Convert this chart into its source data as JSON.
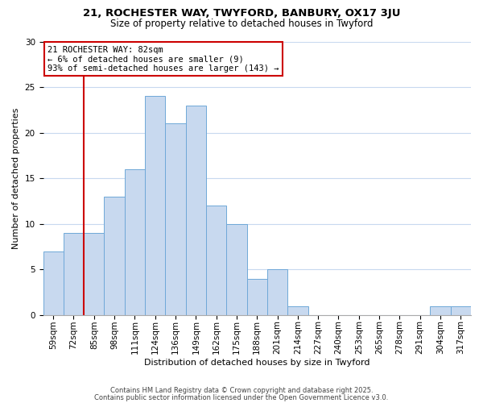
{
  "title_line1": "21, ROCHESTER WAY, TWYFORD, BANBURY, OX17 3JU",
  "title_line2": "Size of property relative to detached houses in Twyford",
  "xlabel": "Distribution of detached houses by size in Twyford",
  "ylabel": "Number of detached properties",
  "bar_labels": [
    "59sqm",
    "72sqm",
    "85sqm",
    "98sqm",
    "111sqm",
    "124sqm",
    "136sqm",
    "149sqm",
    "162sqm",
    "175sqm",
    "188sqm",
    "201sqm",
    "214sqm",
    "227sqm",
    "240sqm",
    "253sqm",
    "265sqm",
    "278sqm",
    "291sqm",
    "304sqm",
    "317sqm"
  ],
  "bar_values": [
    7,
    9,
    9,
    13,
    16,
    24,
    21,
    23,
    12,
    10,
    4,
    5,
    1,
    0,
    0,
    0,
    0,
    0,
    0,
    1,
    1
  ],
  "bar_color": "#c8d9ef",
  "bar_edgecolor": "#6fa8d8",
  "vline_color": "#cc0000",
  "vline_pos": 1.5,
  "annotation_title": "21 ROCHESTER WAY: 82sqm",
  "annotation_line2": "← 6% of detached houses are smaller (9)",
  "annotation_line3": "93% of semi-detached houses are larger (143) →",
  "annotation_box_facecolor": "#ffffff",
  "annotation_box_edgecolor": "#cc0000",
  "ylim": [
    0,
    30
  ],
  "yticks": [
    0,
    5,
    10,
    15,
    20,
    25,
    30
  ],
  "footer_line1": "Contains HM Land Registry data © Crown copyright and database right 2025.",
  "footer_line2": "Contains public sector information licensed under the Open Government Licence v3.0.",
  "background_color": "#ffffff",
  "grid_color": "#c8d9ef",
  "title_fontsize": 9.5,
  "subtitle_fontsize": 8.5,
  "ylabel_fontsize": 8,
  "xlabel_fontsize": 8,
  "tick_fontsize": 7.5,
  "footer_fontsize": 6,
  "ann_fontsize": 7.5
}
